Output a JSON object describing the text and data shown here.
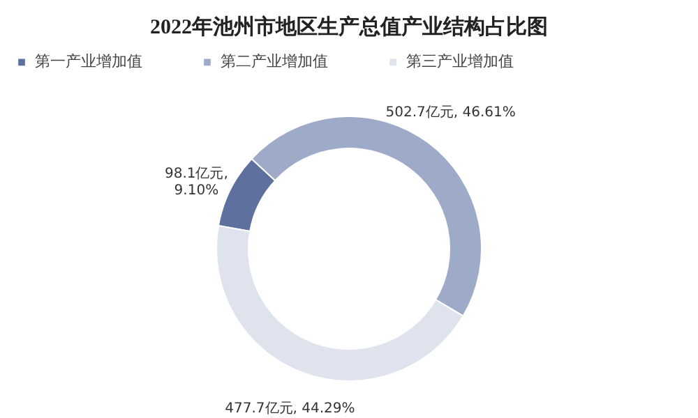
{
  "chart_data": {
    "type": "donut",
    "title": "2022年池州市地区生产总值产业结构占比图",
    "categories": [
      "第一产业增加值",
      "第二产业增加值",
      "第三产业增加值"
    ],
    "values": [
      98.1,
      502.7,
      477.7
    ],
    "colors": [
      "#5d709e",
      "#9eabc8",
      "#dfe3ee"
    ],
    "value_labels": [
      "98.1亿元,\n9.10%",
      "502.7亿元, 46.61%",
      "477.7亿元, 44.29%"
    ],
    "legend": "top"
  }
}
